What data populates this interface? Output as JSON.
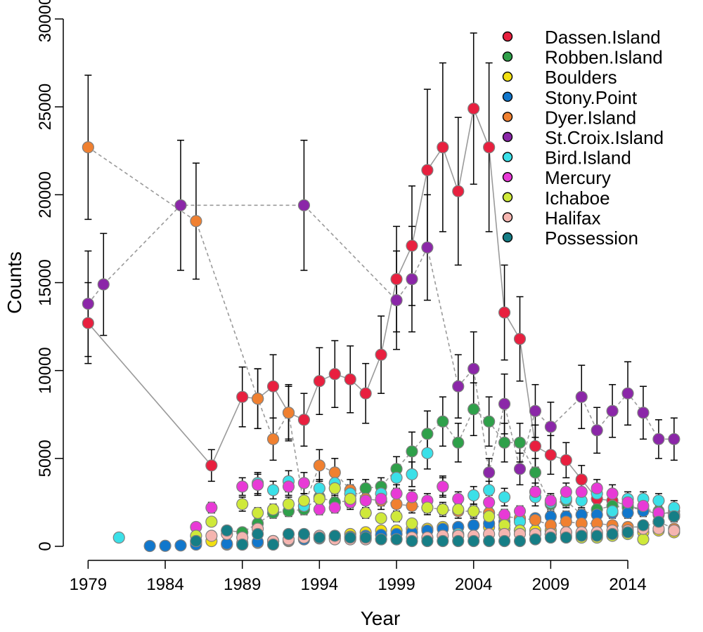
{
  "chart_data": {
    "type": "scatter",
    "title": "",
    "xlabel": "Year",
    "ylabel": "Counts",
    "xlim": [
      1978.3,
      2017.6
    ],
    "ylim": [
      0,
      30000
    ],
    "xticks": [
      1979,
      1984,
      1989,
      1994,
      1999,
      2004,
      2009,
      2014
    ],
    "yticks": [
      0,
      5000,
      10000,
      15000,
      20000,
      25000,
      30000
    ],
    "grid": false,
    "legend_position": "top-right",
    "series": [
      {
        "name": "Dassen.Island",
        "color": "#e8203f",
        "trend_line": true,
        "x": [
          1979,
          1987,
          1989,
          1990,
          1991,
          1992,
          1993,
          1994,
          1995,
          1996,
          1997,
          1998,
          1999,
          2000,
          2001,
          2002,
          2003,
          2004,
          2005,
          2006,
          2007,
          2008,
          2009,
          2010,
          2011,
          2012,
          2013,
          2014,
          2015,
          2016,
          2017
        ],
        "y": [
          12700,
          4600,
          8500,
          8400,
          9100,
          7600,
          7200,
          9400,
          9800,
          9500,
          8700,
          10900,
          15200,
          17100,
          21400,
          22700,
          20200,
          24900,
          22700,
          13300,
          11800,
          5700,
          5200,
          4900,
          3800,
          2700,
          2600,
          2300,
          2100,
          1800,
          2000
        ],
        "err": [
          2300,
          900,
          1700,
          1700,
          1800,
          1600,
          1500,
          1900,
          1900,
          1900,
          1700,
          2200,
          3000,
          3400,
          4600,
          4800,
          4200,
          4300,
          4800,
          2700,
          2400,
          1200,
          1100,
          1000,
          800,
          600,
          500,
          500,
          400,
          400,
          400
        ]
      },
      {
        "name": "Robben.Island",
        "color": "#2fa04a",
        "trend_line": true,
        "x": [
          1988,
          1989,
          1990,
          1991,
          1992,
          1993,
          1994,
          1995,
          1996,
          1997,
          1998,
          1999,
          2000,
          2001,
          2002,
          2003,
          2004,
          2005,
          2006,
          2007,
          2008,
          2009,
          2010,
          2011,
          2012,
          2013,
          2014,
          2015,
          2016,
          2017
        ],
        "y": [
          900,
          800,
          1300,
          1900,
          2000,
          2100,
          2800,
          2500,
          2600,
          3300,
          3400,
          4400,
          5400,
          6400,
          7100,
          5900,
          7800,
          7100,
          5900,
          5900,
          4200,
          2400,
          2600,
          1800,
          2100,
          2300,
          2200,
          2100,
          2000,
          1800
        ],
        "err": [
          100,
          100,
          200,
          300,
          300,
          300,
          400,
          400,
          400,
          500,
          500,
          700,
          1100,
          1300,
          1400,
          1100,
          1500,
          1400,
          1100,
          1100,
          800,
          400,
          400,
          300,
          300,
          400,
          400,
          300,
          300,
          300
        ]
      },
      {
        "name": "Boulders",
        "color": "#f2e011",
        "trend_line": false,
        "x": [
          1986,
          1987,
          1988,
          1989,
          1990,
          1991,
          1992,
          1993,
          1994,
          1995,
          1996,
          1997,
          1998,
          1999,
          2000,
          2001,
          2002,
          2003,
          2004,
          2005,
          2006,
          2007,
          2008,
          2009,
          2010,
          2011,
          2012,
          2013,
          2014,
          2015,
          2016,
          2017
        ],
        "y": [
          200,
          300,
          100,
          100,
          200,
          300,
          300,
          400,
          500,
          600,
          700,
          800,
          900,
          900,
          1000,
          1000,
          1100,
          1100,
          1200,
          1100,
          1000,
          900,
          900,
          900,
          800,
          700,
          700,
          600,
          800,
          800,
          900,
          800
        ],
        "err": [
          0,
          0,
          0,
          0,
          0,
          0,
          0,
          0,
          100,
          100,
          100,
          100,
          100,
          100,
          100,
          100,
          100,
          100,
          200,
          100,
          100,
          100,
          100,
          100,
          100,
          100,
          100,
          100,
          100,
          100,
          100,
          100
        ]
      },
      {
        "name": "Stony.Point",
        "color": "#1177cc",
        "trend_line": false,
        "x": [
          1983,
          1984,
          1985,
          1986,
          1988,
          1989,
          1990,
          1991,
          1992,
          1993,
          1994,
          1995,
          1996,
          1997,
          1998,
          1999,
          2000,
          2001,
          2002,
          2003,
          2004,
          2005,
          2006,
          2007,
          2008,
          2009,
          2010,
          2011,
          2012,
          2013,
          2014,
          2015,
          2016,
          2017
        ],
        "y": [
          20,
          30,
          50,
          100,
          150,
          200,
          250,
          300,
          350,
          400,
          450,
          500,
          550,
          600,
          650,
          700,
          800,
          900,
          1000,
          1100,
          1200,
          1300,
          1400,
          1500,
          1600,
          1700,
          1700,
          1800,
          1800,
          1900,
          1900,
          2000,
          1900,
          1800
        ],
        "err": [
          0,
          0,
          0,
          0,
          0,
          0,
          0,
          0,
          0,
          0,
          0,
          0,
          0,
          0,
          100,
          100,
          100,
          100,
          100,
          200,
          200,
          200,
          200,
          200,
          200,
          300,
          300,
          300,
          300,
          300,
          300,
          300,
          300,
          300
        ]
      },
      {
        "name": "Dyer.Island",
        "color": "#f08030",
        "trend_line": true,
        "x": [
          1979,
          1986,
          1990,
          1991,
          1992,
          1993,
          1994,
          1995,
          1996,
          1997,
          1998,
          1999,
          2000,
          2001,
          2002,
          2003,
          2004,
          2005,
          2006,
          2007,
          2008,
          2009,
          2010,
          2011,
          2012,
          2013,
          2014,
          2015,
          2016,
          2017
        ],
        "y": [
          22700,
          18500,
          8400,
          6100,
          7600,
          2300,
          4600,
          4200,
          3200,
          2700,
          2600,
          2400,
          2300,
          2200,
          2100,
          2000,
          2000,
          1900,
          1700,
          1600,
          1500,
          1200,
          1400,
          1300,
          1300,
          1200,
          1100,
          1100,
          1400,
          1000
        ],
        "err": [
          4100,
          3300,
          1700,
          1200,
          1500,
          400,
          900,
          800,
          600,
          500,
          500,
          400,
          400,
          400,
          400,
          400,
          400,
          300,
          300,
          300,
          300,
          200,
          200,
          200,
          200,
          200,
          200,
          200,
          200,
          200
        ]
      },
      {
        "name": "St.Croix.Island",
        "color": "#8b27a8",
        "trend_line": true,
        "x": [
          1979,
          1980,
          1985,
          1993,
          1999,
          2000,
          2001,
          2003,
          2004,
          2005,
          2006,
          2007,
          2008,
          2009,
          2011,
          2012,
          2013,
          2014,
          2015,
          2016,
          2017
        ],
        "y": [
          13800,
          14900,
          19400,
          19400,
          14000,
          15200,
          17000,
          9100,
          10100,
          4200,
          8100,
          4400,
          7700,
          6800,
          8500,
          6600,
          7700,
          8700,
          7600,
          6100,
          6100
        ],
        "err": [
          3000,
          2900,
          3700,
          3700,
          2800,
          3000,
          3000,
          1800,
          2100,
          800,
          1700,
          900,
          1500,
          1400,
          1800,
          1300,
          1500,
          1800,
          1500,
          1100,
          1200
        ]
      },
      {
        "name": "Bird.Island",
        "color": "#3be0e8",
        "trend_line": false,
        "x": [
          1981,
          1990,
          1991,
          1992,
          1993,
          1994,
          1995,
          1996,
          1997,
          1998,
          1999,
          2000,
          2001,
          2002,
          2003,
          2004,
          2005,
          2006,
          2007,
          2008,
          2009,
          2010,
          2011,
          2012,
          2013,
          2014,
          2015,
          2016,
          2017
        ],
        "y": [
          500,
          3600,
          3200,
          3700,
          2300,
          3300,
          3600,
          3000,
          1900,
          3000,
          3900,
          4100,
          5300,
          3400,
          700,
          2900,
          3200,
          2800,
          1400,
          2800,
          2500,
          2700,
          2600,
          3000,
          2000,
          2700,
          2700,
          2600,
          2200
        ],
        "err": [
          0,
          600,
          500,
          600,
          400,
          500,
          600,
          500,
          300,
          500,
          600,
          700,
          900,
          600,
          100,
          500,
          500,
          500,
          200,
          500,
          400,
          400,
          400,
          500,
          300,
          400,
          400,
          400,
          400
        ]
      },
      {
        "name": "Mercury",
        "color": "#e83ad6",
        "trend_line": false,
        "x": [
          1986,
          1987,
          1989,
          1990,
          1992,
          1993,
          1994,
          1995,
          1996,
          1997,
          1998,
          1999,
          2000,
          2001,
          2002,
          2003,
          2004,
          2005,
          2006,
          2007,
          2008,
          2009,
          2010,
          2011,
          2012,
          2013,
          2014,
          2015,
          2016,
          2017
        ],
        "y": [
          1100,
          2200,
          3400,
          3500,
          3400,
          3600,
          2100,
          2200,
          2500,
          2600,
          2700,
          3000,
          2800,
          2600,
          3400,
          2700,
          2000,
          2500,
          1800,
          2000,
          3100,
          2600,
          3100,
          3100,
          3300,
          3000,
          2500,
          2300,
          1900,
          1700
        ],
        "err": [
          100,
          300,
          500,
          600,
          500,
          600,
          300,
          300,
          400,
          400,
          400,
          500,
          400,
          400,
          500,
          400,
          300,
          400,
          300,
          300,
          500,
          400,
          500,
          500,
          500,
          500,
          400,
          400,
          300,
          300
        ]
      },
      {
        "name": "Ichaboe",
        "color": "#cfe93a",
        "trend_line": false,
        "x": [
          1986,
          1987,
          1989,
          1990,
          1991,
          1992,
          1993,
          1994,
          1995,
          1996,
          1997,
          1998,
          1999,
          2000,
          2001,
          2002,
          2003,
          2004,
          2005,
          2006,
          2007,
          2008,
          2009,
          2010,
          2011,
          2012,
          2013,
          2014,
          2015
        ],
        "y": [
          600,
          1400,
          2400,
          1900,
          2100,
          2400,
          2600,
          2700,
          3300,
          2700,
          1900,
          1600,
          1700,
          1300,
          2200,
          2100,
          2100,
          2000,
          1700,
          1200,
          900,
          700,
          700,
          600,
          500,
          500,
          600,
          700,
          400
        ],
        "err": [
          100,
          200,
          400,
          300,
          300,
          400,
          400,
          400,
          500,
          400,
          300,
          200,
          300,
          200,
          300,
          300,
          300,
          300,
          300,
          200,
          100,
          100,
          100,
          100,
          100,
          100,
          100,
          100,
          100
        ]
      },
      {
        "name": "Halifax",
        "color": "#f5b5b0",
        "trend_line": false,
        "x": [
          1986,
          1987,
          1988,
          1989,
          1990,
          1991,
          1992,
          1993,
          1994,
          1995,
          1996,
          1997,
          1998,
          1999,
          2000,
          2001,
          2002,
          2003,
          2004,
          2005,
          2006,
          2007,
          2008,
          2009,
          2010,
          2011,
          2012,
          2013,
          2014,
          2015,
          2016,
          2017
        ],
        "y": [
          300,
          600,
          700,
          500,
          1000,
          300,
          400,
          500,
          600,
          400,
          400,
          400,
          400,
          400,
          500,
          500,
          600,
          600,
          600,
          700,
          700,
          700,
          700,
          700,
          800,
          800,
          800,
          900,
          900,
          1000,
          1000,
          900
        ],
        "err": [
          0,
          100,
          100,
          100,
          200,
          0,
          0,
          100,
          100,
          0,
          0,
          0,
          0,
          0,
          100,
          100,
          100,
          100,
          100,
          100,
          100,
          100,
          100,
          100,
          100,
          100,
          100,
          100,
          100,
          100,
          100,
          100
        ]
      },
      {
        "name": "Possession",
        "color": "#167e86",
        "trend_line": false,
        "x": [
          1986,
          1988,
          1989,
          1990,
          1991,
          1992,
          1993,
          1994,
          1995,
          1996,
          1997,
          1998,
          1999,
          2000,
          2001,
          2002,
          2003,
          2004,
          2005,
          2006,
          2007,
          2008,
          2009,
          2010,
          2011,
          2012,
          2013,
          2014,
          2015,
          2016,
          2017
        ],
        "y": [
          300,
          900,
          100,
          700,
          100,
          700,
          700,
          500,
          600,
          500,
          500,
          400,
          400,
          300,
          300,
          300,
          300,
          300,
          300,
          300,
          300,
          400,
          500,
          500,
          600,
          600,
          700,
          800,
          1200,
          1400,
          1700
        ],
        "err": [
          0,
          100,
          0,
          100,
          0,
          100,
          100,
          100,
          100,
          100,
          100,
          0,
          0,
          0,
          0,
          0,
          0,
          0,
          0,
          0,
          0,
          0,
          100,
          100,
          100,
          100,
          100,
          100,
          200,
          200,
          300
        ]
      }
    ]
  }
}
